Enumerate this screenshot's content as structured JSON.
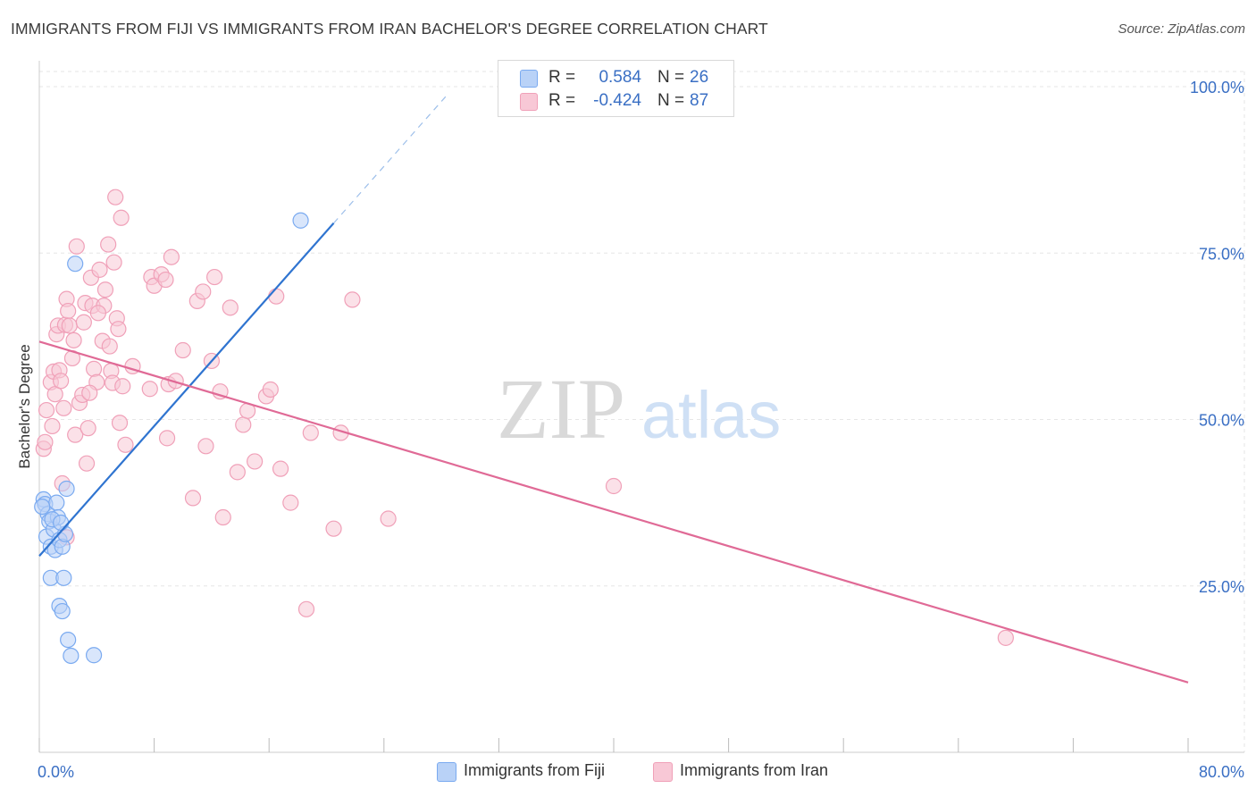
{
  "header": {
    "title": "IMMIGRANTS FROM FIJI VS IMMIGRANTS FROM IRAN BACHELOR'S DEGREE CORRELATION CHART",
    "source": "Source: ZipAtlas.com"
  },
  "watermark": {
    "part1": "ZIP",
    "part2": "atlas"
  },
  "legend": {
    "fiji": {
      "r_label": "R =",
      "r_value": "0.584",
      "n_label": "N =",
      "n_value": "26"
    },
    "iran": {
      "r_label": "R =",
      "r_value": "-0.424",
      "n_label": "N =",
      "n_value": "87"
    }
  },
  "bottom_legend": {
    "fiji": "Immigrants from Fiji",
    "iran": "Immigrants from Iran"
  },
  "chart_data": {
    "type": "scatter",
    "title": "IMMIGRANTS FROM FIJI VS IMMIGRANTS FROM IRAN BACHELOR'S DEGREE CORRELATION CHART",
    "xlabel": "",
    "ylabel": "Bachelor's Degree",
    "xlim": [
      0,
      80
    ],
    "ylim": [
      0,
      105
    ],
    "x_tick_labels": [
      {
        "value": 0,
        "label": "0.0%"
      },
      {
        "value": 80,
        "label": "80.0%"
      }
    ],
    "x_minor_ticks": [
      0,
      8,
      16,
      24,
      32,
      40,
      48,
      56,
      64,
      72,
      80
    ],
    "y_tick_labels": [
      {
        "value": 25,
        "label": "25.0%"
      },
      {
        "value": 50,
        "label": "50.0%"
      },
      {
        "value": 75,
        "label": "75.0%"
      },
      {
        "value": 100,
        "label": "100.0%"
      }
    ],
    "grid": true,
    "legend_position": "top-center",
    "series": [
      {
        "name": "Immigrants from Fiji",
        "color": "#7aaaf0",
        "fill": "#b9d2f7",
        "trend_color": "#2f74d0",
        "trend": {
          "x_start": 0,
          "y_start": 29.5,
          "x_end": 20.5,
          "y_end": 79.5,
          "x_dash_end": 28.5,
          "y_dash_end": 99
        },
        "points": [
          [
            0.3,
            38
          ],
          [
            0.4,
            37.3
          ],
          [
            0.6,
            35.8
          ],
          [
            0.7,
            34.7
          ],
          [
            0.5,
            32.4
          ],
          [
            0.8,
            30.9
          ],
          [
            1.0,
            33.5
          ],
          [
            1.2,
            37.5
          ],
          [
            1.1,
            30.4
          ],
          [
            1.3,
            35.3
          ],
          [
            1.4,
            31.9
          ],
          [
            1.6,
            30.9
          ],
          [
            1.8,
            32.8
          ],
          [
            1.9,
            39.6
          ],
          [
            0.8,
            26.2
          ],
          [
            1.7,
            26.2
          ],
          [
            1.4,
            22.0
          ],
          [
            1.6,
            21.2
          ],
          [
            2.0,
            16.9
          ],
          [
            2.2,
            14.5
          ],
          [
            3.8,
            14.6
          ],
          [
            2.5,
            73.4
          ],
          [
            18.2,
            79.9
          ],
          [
            0.2,
            36.9
          ],
          [
            0.9,
            35.0
          ],
          [
            1.5,
            34.5
          ]
        ]
      },
      {
        "name": "Immigrants from Iran",
        "color": "#f0a0b8",
        "fill": "#f8c8d6",
        "trend_color": "#e06a96",
        "trend": {
          "x_start": 0,
          "y_start": 61.7,
          "x_end": 80,
          "y_end": 10.5
        },
        "points": [
          [
            0.3,
            45.6
          ],
          [
            0.4,
            46.6
          ],
          [
            0.5,
            51.4
          ],
          [
            0.8,
            55.6
          ],
          [
            1.0,
            57.2
          ],
          [
            1.1,
            53.8
          ],
          [
            1.2,
            62.8
          ],
          [
            1.3,
            64.1
          ],
          [
            1.4,
            57.4
          ],
          [
            1.5,
            55.8
          ],
          [
            1.6,
            40.4
          ],
          [
            1.8,
            64.2
          ],
          [
            1.9,
            68.1
          ],
          [
            2.0,
            66.3
          ],
          [
            2.1,
            64.1
          ],
          [
            2.3,
            59.2
          ],
          [
            2.5,
            47.7
          ],
          [
            2.6,
            76.0
          ],
          [
            2.8,
            52.5
          ],
          [
            3.0,
            53.7
          ],
          [
            3.1,
            64.6
          ],
          [
            3.2,
            67.5
          ],
          [
            3.3,
            43.4
          ],
          [
            3.4,
            48.7
          ],
          [
            3.6,
            71.3
          ],
          [
            3.7,
            67.1
          ],
          [
            3.8,
            57.6
          ],
          [
            4.0,
            55.6
          ],
          [
            4.2,
            72.5
          ],
          [
            4.4,
            61.8
          ],
          [
            4.5,
            67.1
          ],
          [
            4.6,
            69.5
          ],
          [
            4.8,
            76.3
          ],
          [
            5.0,
            57.3
          ],
          [
            5.1,
            55.5
          ],
          [
            5.2,
            73.6
          ],
          [
            5.3,
            83.4
          ],
          [
            5.4,
            65.2
          ],
          [
            5.5,
            63.6
          ],
          [
            5.6,
            49.5
          ],
          [
            5.7,
            80.3
          ],
          [
            5.8,
            55.0
          ],
          [
            6.0,
            46.2
          ],
          [
            7.8,
            71.4
          ],
          [
            8.0,
            70.1
          ],
          [
            8.5,
            71.8
          ],
          [
            8.8,
            71.0
          ],
          [
            7.7,
            54.6
          ],
          [
            9.0,
            55.3
          ],
          [
            9.2,
            74.4
          ],
          [
            9.5,
            55.8
          ],
          [
            8.9,
            47.2
          ],
          [
            10.0,
            60.4
          ],
          [
            10.7,
            38.2
          ],
          [
            11.0,
            67.8
          ],
          [
            11.4,
            69.2
          ],
          [
            11.6,
            46.0
          ],
          [
            12.0,
            58.8
          ],
          [
            12.2,
            71.4
          ],
          [
            12.6,
            54.2
          ],
          [
            12.8,
            35.3
          ],
          [
            13.3,
            66.8
          ],
          [
            13.8,
            42.1
          ],
          [
            14.2,
            49.2
          ],
          [
            14.5,
            51.3
          ],
          [
            15.0,
            43.7
          ],
          [
            15.8,
            53.5
          ],
          [
            16.1,
            54.5
          ],
          [
            16.5,
            68.5
          ],
          [
            16.8,
            42.6
          ],
          [
            17.5,
            37.5
          ],
          [
            18.6,
            21.5
          ],
          [
            18.9,
            48.0
          ],
          [
            20.5,
            33.6
          ],
          [
            21.0,
            48.0
          ],
          [
            21.8,
            68.0
          ],
          [
            24.3,
            35.1
          ],
          [
            40.0,
            40.0
          ],
          [
            67.3,
            17.2
          ],
          [
            1.7,
            51.7
          ],
          [
            2.4,
            61.9
          ],
          [
            3.5,
            54.0
          ],
          [
            4.9,
            61.0
          ],
          [
            6.5,
            58.0
          ],
          [
            0.9,
            49.0
          ],
          [
            1.9,
            32.3
          ],
          [
            4.1,
            66.0
          ]
        ]
      }
    ]
  }
}
